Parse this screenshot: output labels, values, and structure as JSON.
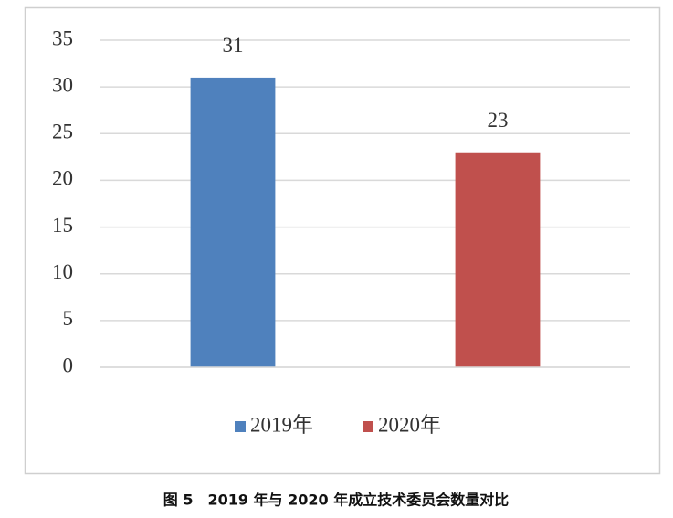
{
  "chart_data": {
    "type": "bar",
    "title": "图 5　2019 年与 2020 年成立技术委员会数量对比",
    "categories": [
      null
    ],
    "series": [
      {
        "name": "2019年",
        "color": "#4f81bd",
        "values": [
          31
        ]
      },
      {
        "name": "2020年",
        "color": "#c0504d",
        "values": [
          23
        ]
      }
    ],
    "ylim": [
      0,
      35
    ],
    "yticks": [
      0,
      5,
      10,
      15,
      20,
      25,
      30,
      35
    ],
    "grid": true,
    "legend": "bottom"
  }
}
